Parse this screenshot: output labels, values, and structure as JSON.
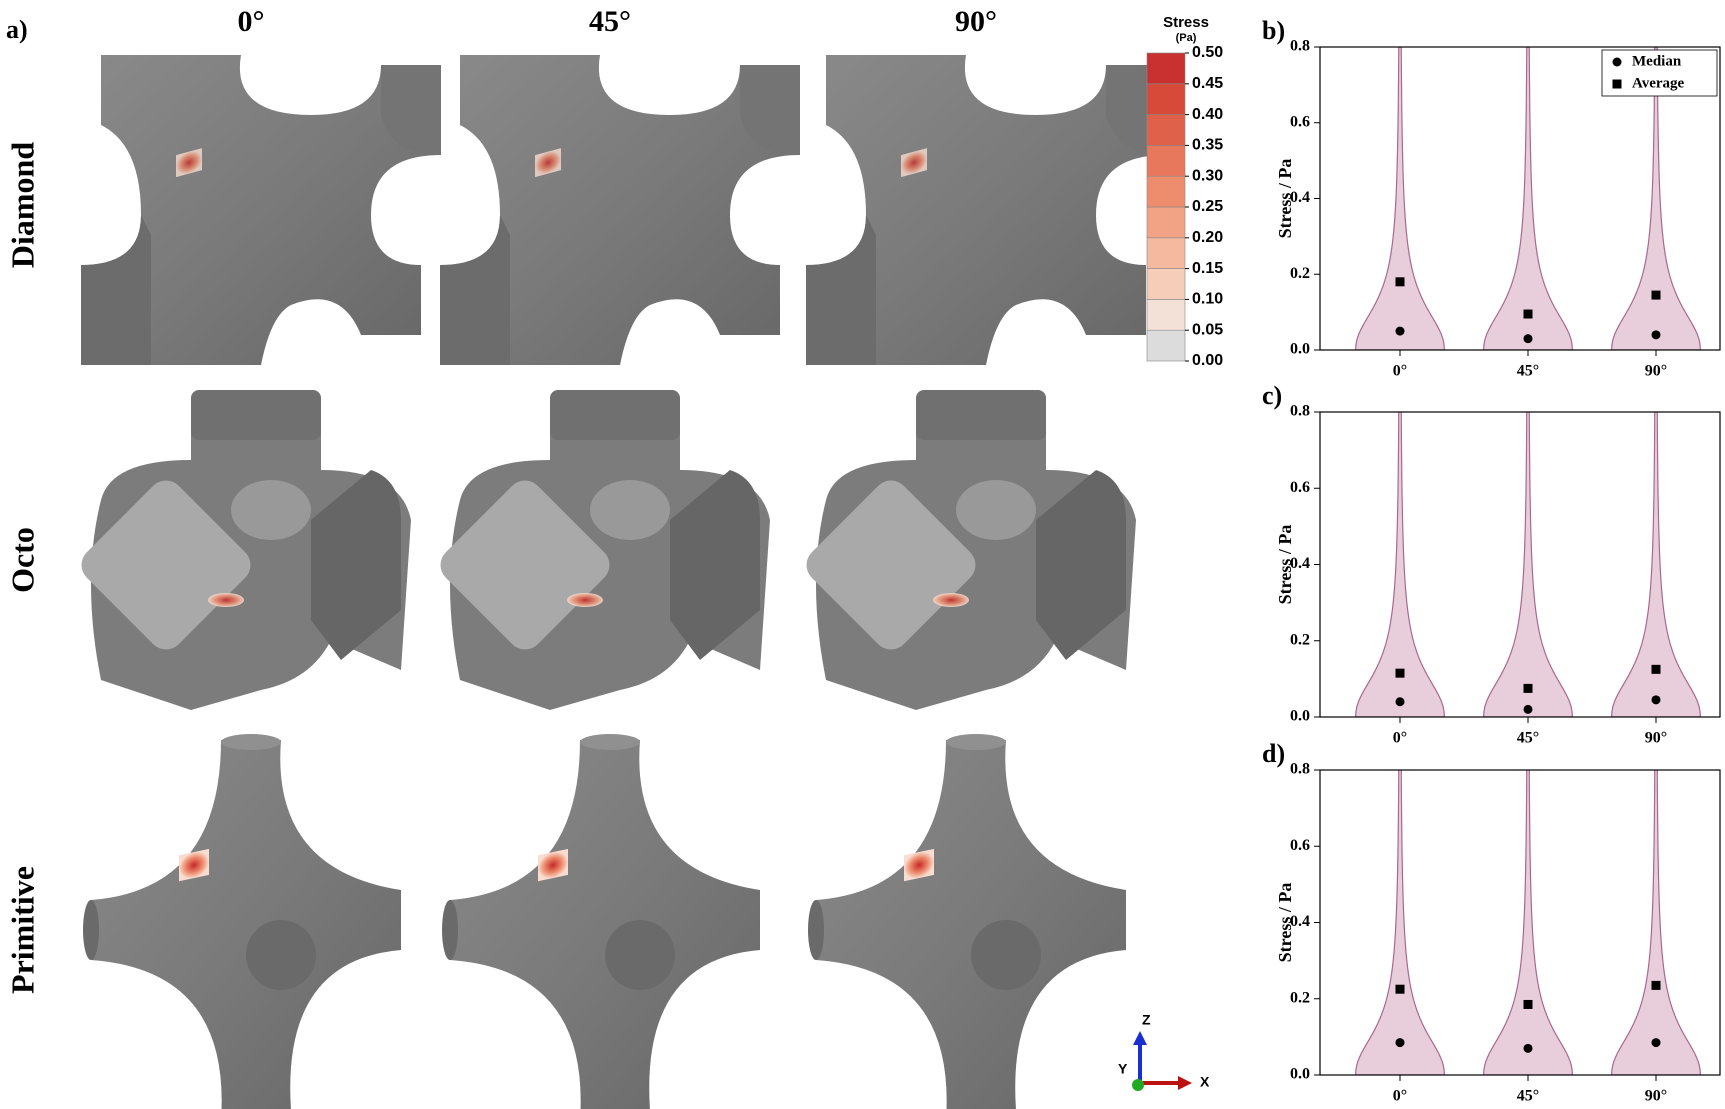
{
  "panel_a": {
    "label": "a)",
    "columns": [
      "0°",
      "45°",
      "90°"
    ],
    "rows": [
      "Diamond",
      "Octo",
      "Primitive"
    ],
    "colorbar": {
      "title": "Stress",
      "unit": "(Pa)",
      "ticks": [
        {
          "value": 0,
          "label": "0.00"
        },
        {
          "value": 0.05,
          "label": "0.05"
        },
        {
          "value": 0.1,
          "label": "0.10"
        },
        {
          "value": 0.15,
          "label": "0.15"
        },
        {
          "value": 0.2,
          "label": "0.20"
        },
        {
          "value": 0.25,
          "label": "0.25"
        },
        {
          "value": 0.3,
          "label": "0.30"
        },
        {
          "value": 0.35,
          "label": "0.35"
        },
        {
          "value": 0.4,
          "label": "0.40"
        },
        {
          "value": 0.45,
          "label": "0.45"
        },
        {
          "value": 0.5,
          "label": "0.50"
        }
      ],
      "colors": [
        "#dcdcdc",
        "#f3e0d6",
        "#f5cdb9",
        "#f5b9a0",
        "#f2a385",
        "#ee8d6e",
        "#e8785b",
        "#e06149",
        "#d74a3a",
        "#c93131"
      ]
    },
    "axes_triad": [
      "Z",
      "Y",
      "X"
    ]
  },
  "chart_data": [
    {
      "type": "violin",
      "panel_label": "b)",
      "ylabel": "Stress / Pa",
      "categories": [
        "0°",
        "45°",
        "90°"
      ],
      "ylim": [
        0,
        0.8
      ],
      "yticks": [
        {
          "value": 0,
          "label": "0.0"
        },
        {
          "value": 0.2,
          "label": "0.2"
        },
        {
          "value": 0.4,
          "label": "0.4"
        },
        {
          "value": 0.6,
          "label": "0.6"
        },
        {
          "value": 0.8,
          "label": "0.8"
        }
      ],
      "color": "#e8cddb",
      "edge_color": "#a8688f",
      "legend": "upper right",
      "series": [
        {
          "name": "Median",
          "marker": "circle",
          "color": "#000000",
          "values": [
            0.05,
            0.03,
            0.04
          ]
        },
        {
          "name": "Average",
          "marker": "square",
          "color": "#000000",
          "values": [
            0.18,
            0.095,
            0.145
          ]
        }
      ]
    },
    {
      "type": "violin",
      "panel_label": "c)",
      "ylabel": "Stress / Pa",
      "categories": [
        "0°",
        "45°",
        "90°"
      ],
      "ylim": [
        0,
        0.8
      ],
      "yticks": [
        {
          "value": 0,
          "label": "0.0"
        },
        {
          "value": 0.2,
          "label": "0.2"
        },
        {
          "value": 0.4,
          "label": "0.4"
        },
        {
          "value": 0.6,
          "label": "0.6"
        },
        {
          "value": 0.8,
          "label": "0.8"
        }
      ],
      "color": "#e8cddb",
      "edge_color": "#a8688f",
      "series": [
        {
          "marker": "circle",
          "color": "#000000",
          "values": [
            0.04,
            0.02,
            0.045
          ]
        },
        {
          "marker": "square",
          "color": "#000000",
          "values": [
            0.115,
            0.075,
            0.125
          ]
        }
      ]
    },
    {
      "type": "violin",
      "panel_label": "d)",
      "ylabel": "Stress / Pa",
      "categories": [
        "0°",
        "45°",
        "90°"
      ],
      "ylim": [
        0,
        0.8
      ],
      "yticks": [
        {
          "value": 0,
          "label": "0.0"
        },
        {
          "value": 0.2,
          "label": "0.2"
        },
        {
          "value": 0.4,
          "label": "0.4"
        },
        {
          "value": 0.6,
          "label": "0.6"
        },
        {
          "value": 0.8,
          "label": "0.8"
        }
      ],
      "color": "#e8cddb",
      "edge_color": "#a8688f",
      "series": [
        {
          "marker": "circle",
          "color": "#000000",
          "values": [
            0.085,
            0.07,
            0.085
          ]
        },
        {
          "marker": "square",
          "color": "#000000",
          "values": [
            0.225,
            0.185,
            0.235
          ]
        }
      ]
    }
  ]
}
